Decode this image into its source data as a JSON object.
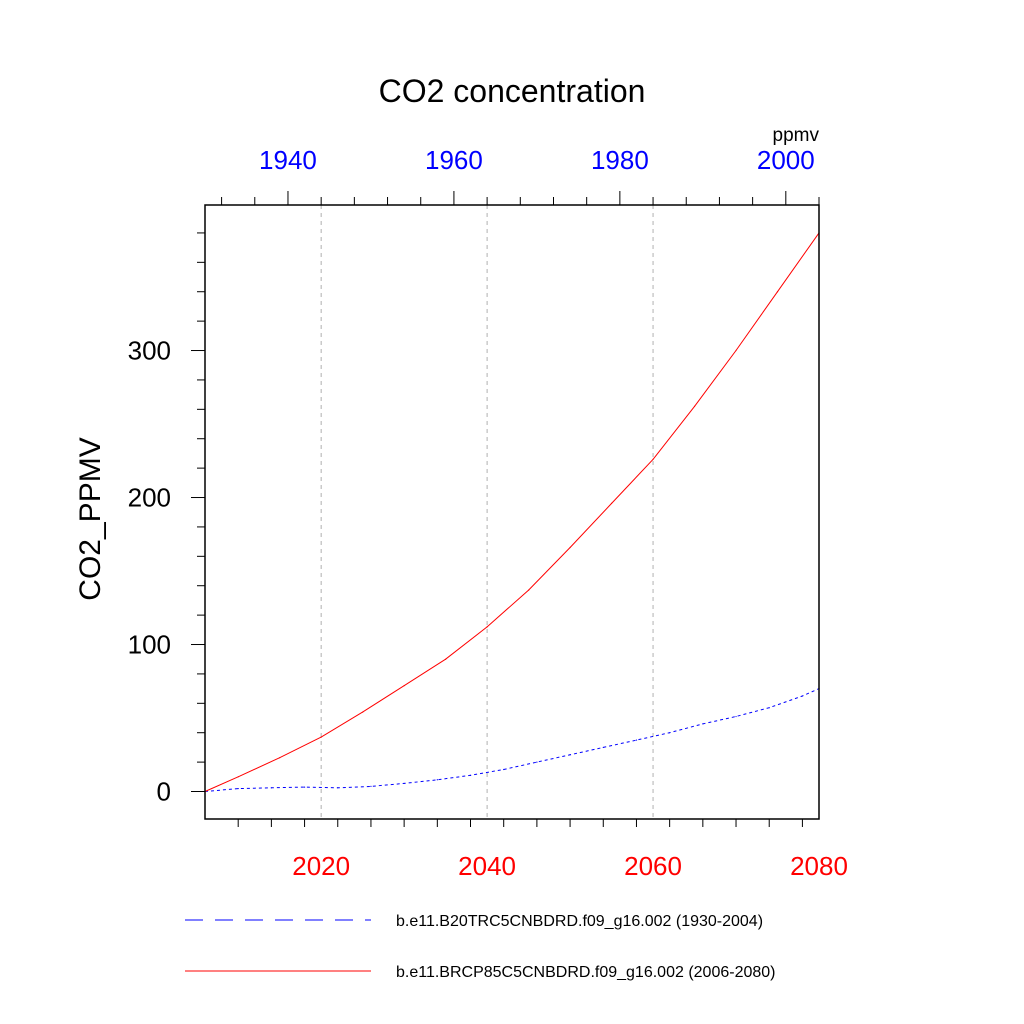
{
  "chart_data": {
    "type": "line",
    "title": "CO2 concentration",
    "ylabel": "CO2_PPMV",
    "top_axis_units": "ppmv",
    "xlim": [
      2006,
      2080
    ],
    "ylim": [
      -18.7,
      399
    ],
    "x_ticks": [
      2020,
      2040,
      2060,
      2080
    ],
    "x_tick_labels": [
      "2020",
      "2040",
      "2060",
      "2080"
    ],
    "top_xlim": [
      1930,
      2004
    ],
    "top_ticks": [
      1940,
      1960,
      1980,
      2000
    ],
    "top_tick_labels": [
      "1940",
      "1960",
      "1980",
      "2000"
    ],
    "y_ticks": [
      0,
      100,
      200,
      300
    ],
    "y_tick_labels": [
      "0",
      "100",
      "200",
      "300"
    ],
    "y_minor_step": 20,
    "x_minor_step": 4,
    "gridlines_at": [
      2020,
      2040,
      2060
    ],
    "series": [
      {
        "name": "b.e11.B20TRC5CNBDRD.f09_g16.002 (1930-2004)",
        "color": "#0000ff",
        "style": "dashed",
        "x": [
          2006,
          2010,
          2014,
          2018,
          2022,
          2026,
          2030,
          2034,
          2038,
          2042,
          2046,
          2050,
          2054,
          2058,
          2062,
          2066,
          2070,
          2074,
          2078,
          2080
        ],
        "values": [
          0,
          2,
          2.5,
          3,
          2.5,
          3.5,
          5.5,
          8,
          11,
          15,
          20,
          25,
          30,
          35,
          40,
          46,
          51,
          57,
          65,
          70
        ]
      },
      {
        "name": "b.e11.BRCP85C5CNBDRD.f09_g16.002 (2006-2080)",
        "color": "#ff0000",
        "style": "solid",
        "x": [
          2006,
          2010,
          2015,
          2020,
          2025,
          2030,
          2035,
          2040,
          2045,
          2050,
          2055,
          2060,
          2065,
          2070,
          2075,
          2080
        ],
        "values": [
          0,
          10,
          23,
          37,
          54,
          72,
          90,
          112,
          137,
          166,
          196,
          226,
          262,
          300,
          340,
          380
        ]
      }
    ]
  }
}
